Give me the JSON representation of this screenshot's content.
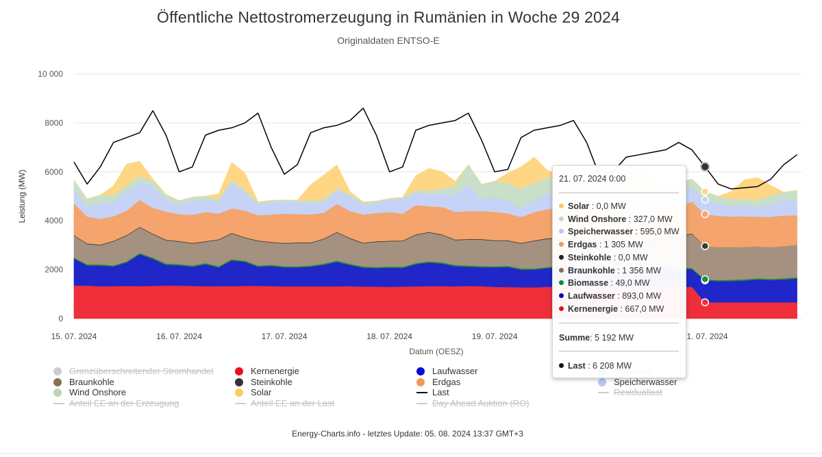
{
  "title": "Öffentliche Nettostromerzeugung in Rumänien in Woche 29 2024",
  "subtitle": "Originaldaten ENTSO-E",
  "footer": "Energy-Charts.info - letztes Update: 05. 08. 2024 13:37 GMT+3",
  "chart_data": {
    "type": "area",
    "stacked": true,
    "title": "Öffentliche Nettostromerzeugung in Rumänien in Woche 29 2024",
    "subtitle": "Originaldaten ENTSO-E",
    "xlabel": "Datum (OESZ)",
    "ylabel": "Leistung (MW)",
    "ylim": [
      0,
      10000
    ],
    "yticks": [
      0,
      2000,
      4000,
      6000,
      8000,
      10000
    ],
    "ytick_labels": [
      "0",
      "2000",
      "4000",
      "6000",
      "8000",
      "10 000"
    ],
    "xticks": [
      "15. 07. 2024",
      "16. 07. 2024",
      "17. 07. 2024",
      "18. 07. 2024",
      "19. 07. 2024",
      "20. 07. 2024",
      "21. 07. 2024"
    ],
    "x_hours": [
      0,
      3,
      6,
      9,
      12,
      15,
      18,
      21,
      24,
      27,
      30,
      33,
      36,
      39,
      42,
      45,
      48,
      51,
      54,
      57,
      60,
      63,
      66,
      69,
      72,
      75,
      78,
      81,
      84,
      87,
      90,
      93,
      96,
      99,
      102,
      105,
      108,
      111,
      114,
      117,
      120,
      123,
      126,
      129,
      132,
      135,
      138,
      141,
      144,
      147,
      150,
      153,
      156,
      159,
      162,
      165
    ],
    "grid": true,
    "series": [
      {
        "name": "Kernenergie",
        "color": "#ee2f3a",
        "values": [
          1350,
          1350,
          1320,
          1330,
          1340,
          1330,
          1340,
          1350,
          1350,
          1340,
          1320,
          1330,
          1330,
          1340,
          1340,
          1330,
          1320,
          1320,
          1320,
          1320,
          1320,
          1330,
          1310,
          1310,
          1300,
          1310,
          1320,
          1330,
          1330,
          1320,
          1340,
          1320,
          1300,
          1290,
          1280,
          1280,
          1300,
          1310,
          1330,
          1340,
          1340,
          1300,
          1320,
          1320,
          1320,
          1310,
          1300,
          1300,
          667,
          667,
          667,
          667,
          667,
          667,
          667,
          667
        ]
      },
      {
        "name": "Laufwasser",
        "color": "#2026c8",
        "values": [
          1100,
          820,
          850,
          800,
          950,
          1300,
          1100,
          850,
          830,
          780,
          900,
          760,
          1050,
          980,
          780,
          820,
          770,
          770,
          800,
          880,
          1000,
          860,
          770,
          750,
          780,
          760,
          900,
          960,
          920,
          820,
          780,
          780,
          790,
          820,
          720,
          720,
          760,
          800,
          800,
          700,
          780,
          720,
          700,
          760,
          760,
          790,
          740,
          720,
          893,
          860,
          870,
          890,
          930,
          910,
          930,
          970
        ]
      },
      {
        "name": "Biomasse",
        "color": "#1c8c3b",
        "values": [
          49,
          49,
          49,
          49,
          49,
          49,
          49,
          49,
          49,
          49,
          49,
          49,
          49,
          49,
          49,
          49,
          49,
          49,
          49,
          49,
          49,
          49,
          49,
          49,
          49,
          49,
          49,
          49,
          49,
          49,
          49,
          49,
          49,
          49,
          49,
          49,
          49,
          49,
          49,
          49,
          49,
          49,
          49,
          49,
          49,
          49,
          49,
          49,
          49,
          49,
          49,
          49,
          49,
          49,
          49,
          49
        ]
      },
      {
        "name": "Braunkohle",
        "color": "#a5917f",
        "values": [
          890,
          830,
          780,
          980,
          1050,
          1050,
          960,
          950,
          920,
          900,
          870,
          1080,
          1050,
          930,
          1000,
          910,
          930,
          950,
          920,
          1000,
          1150,
          1030,
          950,
          1030,
          1030,
          1050,
          1150,
          1180,
          1120,
          1020,
          1060,
          1080,
          1040,
          1020,
          1020,
          1120,
          1150,
          1110,
          1110,
          1150,
          1130,
          1100,
          1050,
          970,
          1050,
          1170,
          1250,
          1390,
          1356,
          1340,
          1330,
          1320,
          1300,
          1290,
          1310,
          1330
        ]
      },
      {
        "name": "Steinkohle",
        "color": "#3b3b3b",
        "values": [
          25,
          25,
          25,
          25,
          25,
          25,
          25,
          25,
          25,
          25,
          25,
          25,
          25,
          25,
          25,
          25,
          25,
          25,
          25,
          25,
          25,
          25,
          25,
          25,
          25,
          25,
          25,
          25,
          25,
          25,
          25,
          25,
          25,
          25,
          25,
          25,
          25,
          25,
          25,
          25,
          25,
          25,
          25,
          25,
          25,
          25,
          25,
          25,
          0,
          0,
          0,
          0,
          0,
          0,
          0,
          0
        ]
      },
      {
        "name": "Erdgas",
        "color": "#f4a46c",
        "values": [
          1300,
          1100,
          1050,
          1000,
          1000,
          1100,
          1050,
          1150,
          1100,
          1150,
          1200,
          1050,
          1000,
          1100,
          1030,
          1120,
          1200,
          1160,
          1150,
          1050,
          1150,
          1100,
          1150,
          1150,
          1170,
          1100,
          1200,
          1050,
          1120,
          1130,
          1140,
          1140,
          1160,
          1100,
          1060,
          1160,
          1180,
          1250,
          1190,
          1230,
          1200,
          1180,
          1230,
          1190,
          1200,
          1230,
          1210,
          1300,
          1305,
          1290,
          1260,
          1260,
          1220,
          1250,
          1260,
          1210
        ]
      },
      {
        "name": "Speicherwasser",
        "color": "#c6d3f6",
        "values": [
          600,
          400,
          650,
          600,
          800,
          700,
          900,
          500,
          400,
          600,
          500,
          500,
          1050,
          750,
          450,
          500,
          500,
          500,
          450,
          450,
          550,
          600,
          400,
          400,
          500,
          600,
          500,
          500,
          550,
          700,
          1100,
          500,
          600,
          550,
          350,
          500,
          650,
          550,
          650,
          650,
          600,
          500,
          550,
          550,
          600,
          500,
          650,
          595,
          595,
          500,
          420,
          470,
          400,
          500,
          650,
          620
        ]
      },
      {
        "name": "Wind Onshore",
        "color": "#c9dfc7",
        "values": [
          350,
          320,
          330,
          290,
          260,
          280,
          200,
          200,
          150,
          120,
          150,
          100,
          130,
          90,
          100,
          80,
          60,
          70,
          110,
          100,
          90,
          100,
          120,
          90,
          60,
          60,
          100,
          150,
          200,
          400,
          800,
          600,
          650,
          700,
          800,
          700,
          650,
          700,
          750,
          800,
          400,
          400,
          350,
          350,
          300,
          330,
          320,
          327,
          327,
          300,
          300,
          220,
          300,
          380,
          300,
          400
        ]
      },
      {
        "name": "Solar",
        "color": "#ffd683",
        "values": [
          0,
          0,
          0,
          350,
          850,
          600,
          80,
          0,
          0,
          0,
          0,
          200,
          700,
          700,
          0,
          0,
          0,
          0,
          650,
          1000,
          950,
          100,
          0,
          0,
          0,
          0,
          600,
          900,
          700,
          150,
          0,
          0,
          0,
          400,
          900,
          1050,
          300,
          0,
          0,
          0,
          0,
          200,
          700,
          950,
          600,
          0,
          0,
          0,
          0,
          0,
          300,
          800,
          900,
          400,
          0,
          0
        ]
      },
      {
        "name": "Last",
        "color": "#000000",
        "type": "line",
        "values": [
          6400,
          5500,
          6200,
          7200,
          7400,
          7600,
          8500,
          7500,
          6000,
          6200,
          7500,
          7700,
          7800,
          8000,
          8400,
          7000,
          5900,
          6300,
          7600,
          7800,
          7900,
          8100,
          8600,
          7500,
          6000,
          6200,
          7700,
          7900,
          8000,
          8100,
          8400,
          7300,
          6000,
          6100,
          7400,
          7700,
          7800,
          7900,
          8100,
          7200,
          5800,
          6000,
          6600,
          6700,
          6800,
          6900,
          7200,
          6900,
          6208,
          5500,
          5300,
          5350,
          5400,
          5700,
          6300,
          6700
        ]
      }
    ],
    "legend": [
      {
        "name": "Grenzüberschreitender Stromhandel",
        "color": "#bdbdbd",
        "marker": "dot",
        "hidden": true
      },
      {
        "name": "Kernenergie",
        "color": "#e8121d",
        "marker": "dot",
        "hidden": false
      },
      {
        "name": "Laufwasser",
        "color": "#0a0ad0",
        "marker": "dot",
        "hidden": false
      },
      {
        "name": "Biomasse",
        "color": "#0d8a2e",
        "marker": "dot",
        "hidden": false
      },
      {
        "name": "Braunkohle",
        "color": "#8b6e55",
        "marker": "dot",
        "hidden": false
      },
      {
        "name": "Steinkohle",
        "color": "#333333",
        "marker": "dot",
        "hidden": false
      },
      {
        "name": "Erdgas",
        "color": "#ef9a55",
        "marker": "dot",
        "hidden": false
      },
      {
        "name": "Speicherwasser",
        "color": "#b5c8f4",
        "marker": "dot",
        "hidden": false
      },
      {
        "name": "Wind Onshore",
        "color": "#b9d6b5",
        "marker": "dot",
        "hidden": false
      },
      {
        "name": "Solar",
        "color": "#ffcc5c",
        "marker": "dot",
        "hidden": false
      },
      {
        "name": "Last",
        "color": "#000000",
        "marker": "line",
        "hidden": false
      },
      {
        "name": "Residuallast",
        "color": "#bdbdbd",
        "marker": "line",
        "hidden": true
      },
      {
        "name": "Anteil EE an der Erzeugung",
        "color": "#bdbdbd",
        "marker": "line",
        "hidden": true
      },
      {
        "name": "Anteil EE an der Last",
        "color": "#bdbdbd",
        "marker": "line",
        "hidden": true
      },
      {
        "name": "Day Ahead Auktion (RO)",
        "color": "#bdbdbd",
        "marker": "line",
        "hidden": true
      }
    ],
    "tooltip": {
      "date": "21. 07. 2024 0:00",
      "rows": [
        {
          "name": "Solar",
          "value": "0,0 MW",
          "color": "#ffc95c"
        },
        {
          "name": "Wind Onshore",
          "value": "327,0 MW",
          "color": "#c1dbbd"
        },
        {
          "name": "Speicherwasser",
          "value": "595,0 MW",
          "color": "#b7c9f4"
        },
        {
          "name": "Erdgas",
          "value": "1 305 MW",
          "color": "#ef9a55"
        },
        {
          "name": "Steinkohle",
          "value": "0,0 MW",
          "color": "#222222"
        },
        {
          "name": "Braunkohle",
          "value": "1 356 MW",
          "color": "#8b6e55"
        },
        {
          "name": "Biomasse",
          "value": "49,0 MW",
          "color": "#0d8a2e"
        },
        {
          "name": "Laufwasser",
          "value": "893,0 MW",
          "color": "#0a0ab0"
        },
        {
          "name": "Kernenergie",
          "value": "667,0 MW",
          "color": "#e8121d"
        }
      ],
      "sum_label": "Summe",
      "sum_value": "5 192 MW",
      "last_label": "Last",
      "last_value": "6 208 MW",
      "last_color": "#111111"
    }
  }
}
